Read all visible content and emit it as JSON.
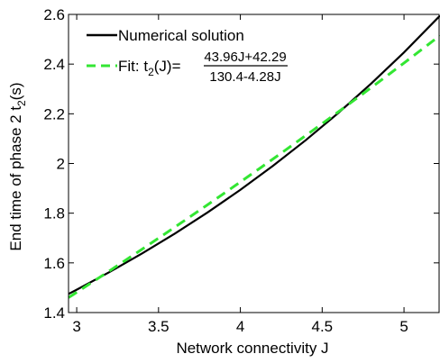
{
  "chart_data": {
    "type": "line",
    "xlabel": "Network connectivity J",
    "ylabel_main": "End time of phase 2 t",
    "ylabel_sub": "2",
    "ylabel_tail": "(s)",
    "xlim": [
      2.95,
      5.22
    ],
    "ylim": [
      1.4,
      2.6
    ],
    "xticks": [
      3,
      3.5,
      4,
      4.5,
      5
    ],
    "xtick_labels": [
      "3",
      "3.5",
      "4",
      "4.5",
      "5"
    ],
    "yticks": [
      1.4,
      1.6,
      1.8,
      2.0,
      2.2,
      2.4,
      2.6
    ],
    "ytick_labels": [
      "1.4",
      "1.6",
      "1.8",
      "2",
      "2.2",
      "2.4",
      "2.6"
    ],
    "grid": false,
    "legend_position": "top-left",
    "series": [
      {
        "name": "Numerical solution",
        "color": "#000000",
        "style": "solid",
        "x": [
          2.95,
          3.0,
          3.2,
          3.4,
          3.6,
          3.8,
          4.0,
          4.2,
          4.4,
          4.6,
          4.8,
          5.0,
          5.22
        ],
        "y": [
          1.475,
          1.492,
          1.563,
          1.638,
          1.718,
          1.803,
          1.894,
          1.991,
          2.094,
          2.204,
          2.322,
          2.447,
          2.595
        ]
      },
      {
        "name_prefix": "Fit: t",
        "name_sub": "2",
        "name_mid": "(J)=",
        "fit_numerator": "43.96J+42.29",
        "fit_denominator": "130.4-4.28J",
        "color": "#33e633",
        "style": "dashed",
        "fit_coeffs": [
          43.96,
          42.29,
          130.4,
          4.28
        ]
      }
    ]
  }
}
